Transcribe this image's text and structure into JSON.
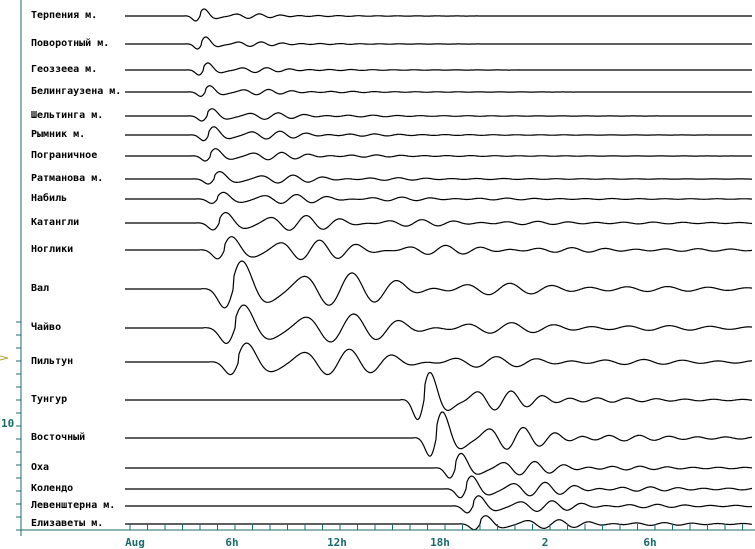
{
  "chart_data": {
    "type": "line",
    "title": "",
    "xlabel": "",
    "ylabel": "",
    "colors": {
      "trace": "#000000",
      "axis": "#1b6b6b",
      "background": "#ffffff"
    },
    "x_ticks": [
      "Aug",
      "6h",
      "12h",
      "18h",
      "2",
      "6h"
    ],
    "y_ticks": [
      "10"
    ],
    "grid": false,
    "legend": "none",
    "series": [
      {
        "name": "Терпения м.",
        "arrival": 4.0,
        "amp": 0.4,
        "period": 1.5,
        "decay": 1.6
      },
      {
        "name": "Поворотный м.",
        "arrival": 4.1,
        "amp": 0.4,
        "period": 1.5,
        "decay": 1.6
      },
      {
        "name": "Геоззееа м.",
        "arrival": 4.2,
        "amp": 0.4,
        "period": 1.6,
        "decay": 1.8
      },
      {
        "name": "Белингаузена м.",
        "arrival": 4.3,
        "amp": 0.35,
        "period": 1.6,
        "decay": 2.2
      },
      {
        "name": "Шельтинга м.",
        "arrival": 4.4,
        "amp": 0.4,
        "period": 1.8,
        "decay": 2.6
      },
      {
        "name": "Рымник м.",
        "arrival": 4.5,
        "amp": 0.45,
        "period": 1.8,
        "decay": 2.8
      },
      {
        "name": "Пограничное",
        "arrival": 4.6,
        "amp": 0.4,
        "period": 1.8,
        "decay": 3.0
      },
      {
        "name": "Ратманова м.",
        "arrival": 4.8,
        "amp": 0.4,
        "period": 2.0,
        "decay": 3.6
      },
      {
        "name": "Набиль",
        "arrival": 5.0,
        "amp": 0.35,
        "period": 2.0,
        "decay": 5.0
      },
      {
        "name": "Катангли",
        "arrival": 5.1,
        "amp": 0.55,
        "period": 2.2,
        "decay": 6.0
      },
      {
        "name": "Ноглики",
        "arrival": 5.4,
        "amp": 0.7,
        "period": 2.4,
        "decay": 7.0
      },
      {
        "name": "Вал",
        "arrival": 5.9,
        "amp": 1.35,
        "period": 3.0,
        "decay": 6.0
      },
      {
        "name": "Чайво",
        "arrival": 6.0,
        "amp": 1.1,
        "period": 3.0,
        "decay": 6.5
      },
      {
        "name": "Пильтун",
        "arrival": 6.2,
        "amp": 0.9,
        "period": 2.8,
        "decay": 7.0
      },
      {
        "name": "Тунгур",
        "arrival": 16.8,
        "amp": 1.4,
        "period": 2.2,
        "decay": 2.5
      },
      {
        "name": "Восточный",
        "arrival": 17.5,
        "amp": 1.3,
        "period": 2.2,
        "decay": 3.0
      },
      {
        "name": "Оха",
        "arrival": 18.6,
        "amp": 0.8,
        "period": 2.0,
        "decay": 3.0
      },
      {
        "name": "Колендо",
        "arrival": 19.2,
        "amp": 0.7,
        "period": 2.0,
        "decay": 3.5
      },
      {
        "name": "Левенштерна м.",
        "arrival": 19.6,
        "amp": 0.55,
        "period": 2.0,
        "decay": 3.5
      },
      {
        "name": "Елизаветы м.",
        "arrival": 20.0,
        "amp": 0.45,
        "period": 2.0,
        "decay": 3.5
      }
    ]
  }
}
